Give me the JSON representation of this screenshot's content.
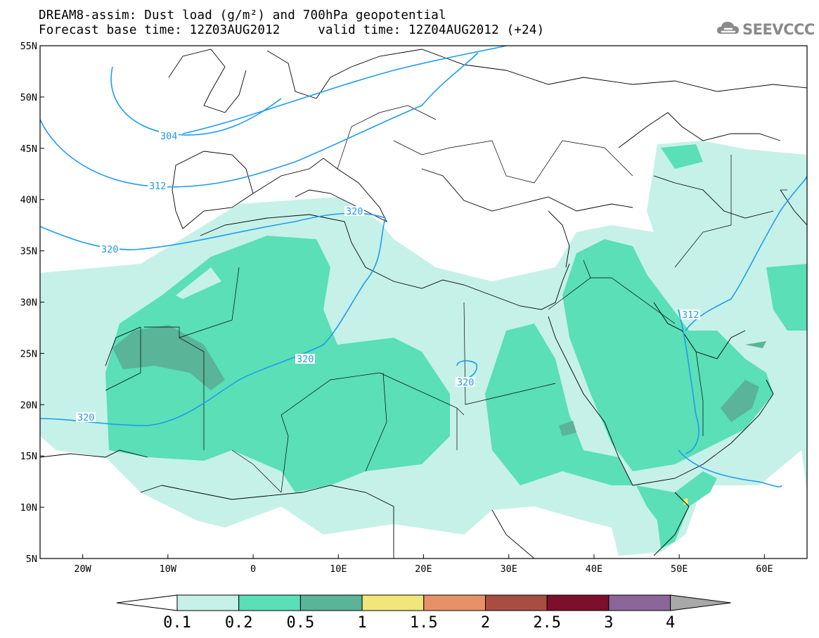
{
  "header": {
    "title": "DREAM8-assim: Dust load (g/m²) and 700hPa geopotential",
    "subtitle": "Forecast base time: 12Z03AUG2012     valid time: 12Z04AUG2012 (+24)"
  },
  "logo": {
    "text": "SEEVCCC",
    "icon": "cloud-icon",
    "color": "#8a8a8a"
  },
  "map": {
    "lon_range": [
      -25,
      65
    ],
    "lat_range": [
      5,
      55
    ],
    "x_ticks": [
      "20W",
      "10W",
      "0",
      "10E",
      "20E",
      "30E",
      "40E",
      "50E",
      "60E"
    ],
    "y_ticks": [
      "55N",
      "50N",
      "45N",
      "40N",
      "35N",
      "30N",
      "25N",
      "20N",
      "15N",
      "10N",
      "5N"
    ],
    "contour_labels": [
      "304",
      "312",
      "320",
      "320",
      "320",
      "320",
      "320",
      "312"
    ],
    "contour_color": "#1e9cf0"
  },
  "colorbar": {
    "levels": [
      "0.1",
      "0.2",
      "0.5",
      "1",
      "1.5",
      "2",
      "2.5",
      "3",
      "4"
    ],
    "colors": [
      "#c6f1e8",
      "#5adfb7",
      "#5ab497",
      "#f1e67a",
      "#e89068",
      "#a94d42",
      "#7c0f2b",
      "#8a6699",
      "#a8a8a8"
    ]
  }
}
